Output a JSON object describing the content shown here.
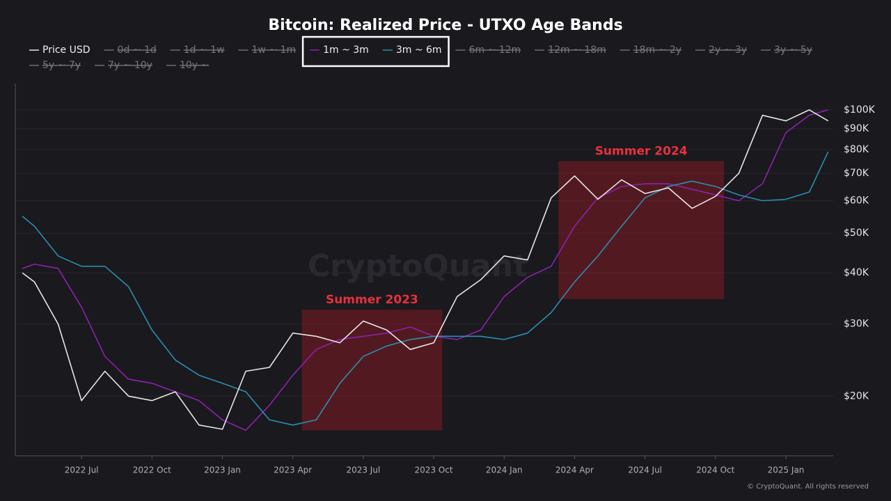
{
  "chart_data": {
    "type": "line",
    "title": "Bitcoin: Realized Price - UTXO Age Bands",
    "watermark": "CryptoQuant",
    "footer": "© CryptoQuant. All rights reserved",
    "log_scale": true,
    "grid": true,
    "x": [
      2022.29,
      2022.333,
      2022.417,
      2022.5,
      2022.583,
      2022.667,
      2022.75,
      2022.833,
      2022.917,
      2023.0,
      2023.083,
      2023.167,
      2023.25,
      2023.333,
      2023.417,
      2023.5,
      2023.583,
      2023.667,
      2023.75,
      2023.833,
      2023.917,
      2024.0,
      2024.083,
      2024.167,
      2024.25,
      2024.333,
      2024.417,
      2024.5,
      2024.583,
      2024.667,
      2024.75,
      2024.833,
      2024.917,
      2025.0,
      2025.083,
      2025.15
    ],
    "xlim": [
      2022.265,
      2025.168
    ],
    "xticks": [
      {
        "value": 2022.5,
        "label": "2022 Jul"
      },
      {
        "value": 2022.75,
        "label": "2022 Oct"
      },
      {
        "value": 2023.0,
        "label": "2023 Jan"
      },
      {
        "value": 2023.25,
        "label": "2023 Apr"
      },
      {
        "value": 2023.5,
        "label": "2023 Jul"
      },
      {
        "value": 2023.75,
        "label": "2023 Oct"
      },
      {
        "value": 2024.0,
        "label": "2024 Jan"
      },
      {
        "value": 2024.25,
        "label": "2024 Apr"
      },
      {
        "value": 2024.5,
        "label": "2024 Jul"
      },
      {
        "value": 2024.75,
        "label": "2024 Oct"
      },
      {
        "value": 2025.0,
        "label": "2025 Jan"
      }
    ],
    "ylim": [
      14300,
      116000
    ],
    "yticks": [
      {
        "value": 20000,
        "label": "$20K"
      },
      {
        "value": 30000,
        "label": "$30K"
      },
      {
        "value": 40000,
        "label": "$40K"
      },
      {
        "value": 50000,
        "label": "$50K"
      },
      {
        "value": 60000,
        "label": "$60K"
      },
      {
        "value": 70000,
        "label": "$70K"
      },
      {
        "value": 80000,
        "label": "$80K"
      },
      {
        "value": 90000,
        "label": "$90K"
      },
      {
        "value": 100000,
        "label": "$100K"
      }
    ],
    "series": [
      {
        "name": "Price USD",
        "color": "#e6e6e6",
        "values": [
          40000,
          38000,
          30000,
          19500,
          23000,
          20000,
          19500,
          20500,
          17000,
          16600,
          23000,
          23500,
          28500,
          28000,
          27000,
          30500,
          29000,
          26000,
          27000,
          35000,
          38500,
          44000,
          43000,
          61000,
          69000,
          60500,
          67500,
          62500,
          64500,
          57500,
          61500,
          70000,
          97000,
          94000,
          100000,
          94000
        ]
      },
      {
        "name": "0d ~ 1d",
        "hidden": true
      },
      {
        "name": "1d ~ 1w",
        "hidden": true
      },
      {
        "name": "1w ~ 1m",
        "hidden": true
      },
      {
        "name": "1m ~ 3m",
        "color": "#8e21ae",
        "highlighted": true,
        "values": [
          41000,
          42000,
          41000,
          33000,
          25000,
          22000,
          21500,
          20500,
          19500,
          17500,
          16500,
          19000,
          22500,
          26000,
          27500,
          28000,
          28500,
          29500,
          28000,
          27500,
          29000,
          35000,
          39000,
          41500,
          52000,
          61000,
          65000,
          66000,
          66000,
          64000,
          62000,
          60000,
          66000,
          88000,
          97000,
          100000
        ]
      },
      {
        "name": "3m ~ 6m",
        "color": "#2b8fae",
        "highlighted": true,
        "values": [
          55000,
          52000,
          44000,
          41500,
          41500,
          37000,
          29000,
          24500,
          22500,
          21500,
          20500,
          17500,
          17000,
          17500,
          21500,
          25000,
          26500,
          27500,
          28000,
          28000,
          28000,
          27500,
          28500,
          32000,
          38000,
          44000,
          52000,
          61000,
          65000,
          67000,
          65000,
          62000,
          60000,
          60500,
          63000,
          79000
        ]
      },
      {
        "name": "6m ~ 12m",
        "hidden": true
      },
      {
        "name": "12m ~ 18m",
        "hidden": true
      },
      {
        "name": "18m ~ 2y",
        "hidden": true
      },
      {
        "name": "2y ~ 3y",
        "hidden": true
      },
      {
        "name": "3y ~ 5y",
        "hidden": true
      },
      {
        "name": "5y ~ 7y",
        "hidden": true
      },
      {
        "name": "7y ~ 10y",
        "hidden": true
      },
      {
        "name": "10y ~",
        "hidden": true
      }
    ],
    "regions": [
      {
        "label": "Summer 2023",
        "xrange": [
          2023.282,
          2023.78
        ],
        "yrange": [
          16500,
          32500
        ]
      },
      {
        "label": "Summer 2024",
        "xrange": [
          2024.193,
          2024.78
        ],
        "yrange": [
          34500,
          75000
        ]
      }
    ]
  }
}
